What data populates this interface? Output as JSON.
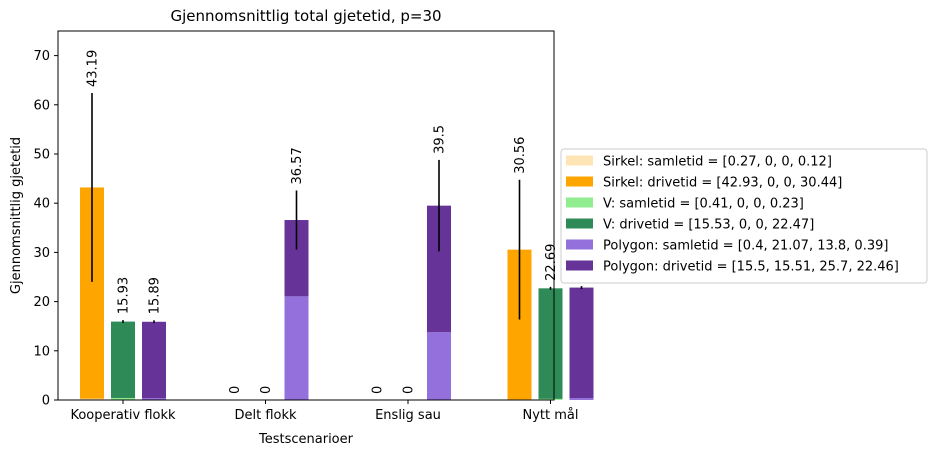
{
  "chart_data": {
    "type": "bar",
    "stacked": true,
    "title": "Gjennomsnittlig total gjetetid, p=30",
    "xlabel": "Testscenarioer",
    "ylabel": "Gjennomsnittlig gjetetid",
    "ylim": [
      0,
      75
    ],
    "yticks": [
      0,
      10,
      20,
      30,
      40,
      50,
      60,
      70
    ],
    "categories": [
      "Kooperativ flokk",
      "Delt flokk",
      "Enslig sau",
      "Nytt mål"
    ],
    "grid": false,
    "legend_position": "right",
    "groups": [
      {
        "name": "Sirkel",
        "segments": [
          {
            "legend": "Sirkel: samletid = [0.27, 0, 0, 0.12]",
            "color": "#ffe4b5",
            "values": [
              0.27,
              0,
              0,
              0.12
            ]
          },
          {
            "legend": "Sirkel: drivetid = [42.93, 0, 0, 30.44]",
            "color": "#ffa500",
            "values": [
              42.93,
              0,
              0,
              30.44
            ]
          }
        ],
        "totals": [
          "43.19",
          "0",
          "0",
          "30.56"
        ],
        "error": [
          19.2,
          0,
          0,
          14.2
        ]
      },
      {
        "name": "V",
        "segments": [
          {
            "legend": "V: samletid = [0.41, 0, 0, 0.23]",
            "color": "#90ee90",
            "values": [
              0.41,
              0,
              0,
              0.23
            ]
          },
          {
            "legend": "V: drivetid = [15.53, 0, 0, 22.47]",
            "color": "#2e8b57",
            "values": [
              15.53,
              0,
              0,
              22.47
            ]
          }
        ],
        "totals": [
          "15.93",
          "0",
          "0",
          "22.69"
        ],
        "error": [
          0.3,
          0,
          0,
          0.3
        ]
      },
      {
        "name": "Polygon",
        "segments": [
          {
            "legend": "Polygon: samletid = [0.4, 21.07, 13.8, 0.39]",
            "color": "#9370db",
            "values": [
              0.4,
              21.07,
              13.8,
              0.39
            ]
          },
          {
            "legend": "Polygon: drivetid = [15.5, 15.51, 25.7, 22.46]",
            "color": "#663399",
            "values": [
              15.5,
              15.51,
              25.7,
              22.46
            ]
          }
        ],
        "totals": [
          "15.89",
          "36.57",
          "39.5",
          "22.84"
        ],
        "error": [
          0.3,
          6.0,
          9.3,
          0.3
        ]
      }
    ]
  }
}
